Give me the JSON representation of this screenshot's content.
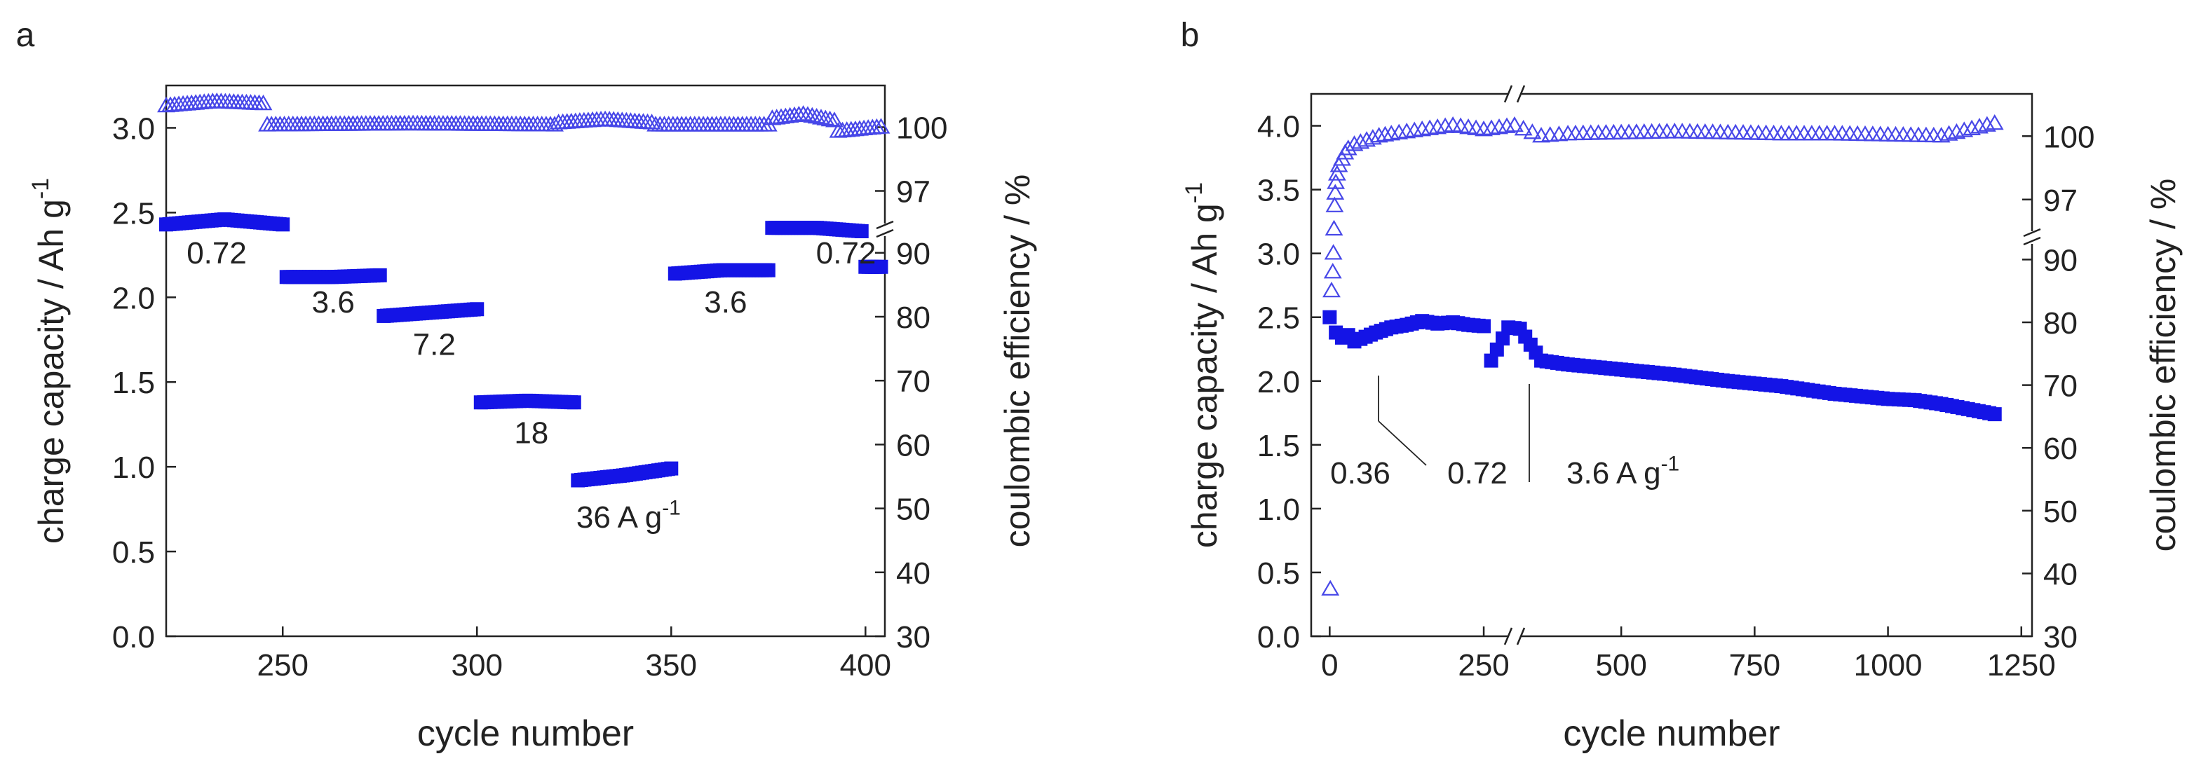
{
  "colors": {
    "series": "#1414e6",
    "marker_edge": "#4747e8",
    "axis": "#222222"
  },
  "chart_data": [
    {
      "type": "scatter",
      "panel_label": "a",
      "xlabel": "cycle number",
      "ylabel": "charge capacity / Ah g",
      "ylabel_sup": "-1",
      "y2label": "coulombic efficiency / %",
      "xlim": [
        220,
        405
      ],
      "ylim": [
        0,
        3.25
      ],
      "y2_upper_range": [
        95.5,
        101.5
      ],
      "y2_lower_range": [
        30,
        92.5
      ],
      "xticks": [
        250,
        300,
        350,
        400
      ],
      "yticks": [
        0.0,
        0.5,
        1.0,
        1.5,
        2.0,
        2.5,
        3.0
      ],
      "y2ticks_upper": [
        97,
        100
      ],
      "y2ticks_lower": [
        30,
        40,
        50,
        60,
        70,
        80,
        90
      ],
      "series": [
        {
          "name": "charge capacity",
          "marker": "filled-square",
          "segments": [
            {
              "x_start": 220,
              "x_end": 250,
              "y_start": 2.43,
              "y_mid": 2.46,
              "y_end": 2.43
            },
            {
              "x_start": 251,
              "x_end": 275,
              "y_start": 2.12,
              "y_mid": 2.12,
              "y_end": 2.13
            },
            {
              "x_start": 276,
              "x_end": 300,
              "y_start": 1.89,
              "y_mid": 1.91,
              "y_end": 1.93
            },
            {
              "x_start": 301,
              "x_end": 325,
              "y_start": 1.38,
              "y_mid": 1.39,
              "y_end": 1.38
            },
            {
              "x_start": 326,
              "x_end": 350,
              "y_start": 0.92,
              "y_mid": 0.95,
              "y_end": 0.99
            },
            {
              "x_start": 351,
              "x_end": 375,
              "y_start": 2.14,
              "y_mid": 2.16,
              "y_end": 2.16
            },
            {
              "x_start": 376,
              "x_end": 399,
              "y_start": 2.41,
              "y_mid": 2.41,
              "y_end": 2.39
            },
            {
              "x_start": 400,
              "x_end": 404,
              "y_start": 2.18,
              "y_mid": 2.18,
              "y_end": 2.18
            }
          ]
        },
        {
          "name": "coulombic efficiency",
          "marker": "open-triangle",
          "segments": [
            {
              "x_start": 220,
              "x_end": 245,
              "y_start": 101.0,
              "y_mid": 101.2,
              "y_end": 101.1
            },
            {
              "x_start": 246,
              "x_end": 320,
              "y_start": 100.1,
              "y_mid": 100.15,
              "y_end": 100.1
            },
            {
              "x_start": 321,
              "x_end": 345,
              "y_start": 100.2,
              "y_mid": 100.35,
              "y_end": 100.2
            },
            {
              "x_start": 346,
              "x_end": 375,
              "y_start": 100.1,
              "y_mid": 100.1,
              "y_end": 100.1
            },
            {
              "x_start": 376,
              "x_end": 392,
              "y_start": 100.4,
              "y_mid": 100.6,
              "y_end": 100.3
            },
            {
              "x_start": 393,
              "x_end": 404,
              "y_start": 99.8,
              "y_mid": 99.9,
              "y_end": 100.0
            }
          ]
        }
      ],
      "annotations": [
        {
          "text": "0.72",
          "x": 233,
          "y": 2.2
        },
        {
          "text": "3.6",
          "x": 263,
          "y": 1.91
        },
        {
          "text": "7.2",
          "x": 289,
          "y": 1.66
        },
        {
          "text": "18",
          "x": 314,
          "y": 1.14
        },
        {
          "text": "36 A g",
          "sup": "-1",
          "x": 339,
          "y": 0.64
        },
        {
          "text": "3.6",
          "x": 364,
          "y": 1.91
        },
        {
          "text": "0.72",
          "x": 395,
          "y": 2.2
        }
      ]
    },
    {
      "type": "scatter",
      "panel_label": "b",
      "xlabel": "cycle number",
      "ylabel": "charge capacity / Ah g",
      "ylabel_sup": "-1",
      "y2label": "coulombic efficiency / %",
      "x_break": true,
      "xlim_left": [
        -30,
        300
      ],
      "xlim_right": [
        300,
        1270
      ],
      "ylim": [
        0,
        4.25
      ],
      "y2_upper_range": [
        95.5,
        101.8
      ],
      "y2_lower_range": [
        30,
        92.5
      ],
      "xticks": [
        0,
        250,
        500,
        750,
        1000,
        1250
      ],
      "yticks": [
        0.0,
        0.5,
        1.0,
        1.5,
        2.0,
        2.5,
        3.0,
        3.5,
        4.0
      ],
      "y2ticks_upper": [
        97,
        100
      ],
      "y2ticks_lower": [
        30,
        40,
        50,
        60,
        70,
        80,
        90
      ],
      "series": [
        {
          "name": "charge capacity",
          "marker": "filled-square",
          "points": [
            [
              0,
              2.5
            ],
            [
              10,
              2.38
            ],
            [
              20,
              2.34
            ],
            [
              30,
              2.36
            ],
            [
              40,
              2.31
            ],
            [
              50,
              2.33
            ],
            [
              75,
              2.38
            ],
            [
              100,
              2.42
            ],
            [
              125,
              2.44
            ],
            [
              150,
              2.47
            ],
            [
              175,
              2.45
            ],
            [
              200,
              2.46
            ],
            [
              225,
              2.44
            ],
            [
              250,
              2.43
            ],
            [
              262,
              2.16
            ],
            [
              290,
              2.42
            ],
            [
              310,
              2.41
            ],
            [
              350,
              2.16
            ],
            [
              400,
              2.13
            ],
            [
              500,
              2.09
            ],
            [
              600,
              2.05
            ],
            [
              700,
              2.0
            ],
            [
              800,
              1.96
            ],
            [
              900,
              1.9
            ],
            [
              1000,
              1.86
            ],
            [
              1050,
              1.85
            ],
            [
              1100,
              1.82
            ],
            [
              1150,
              1.78
            ],
            [
              1200,
              1.74
            ]
          ]
        },
        {
          "name": "coulombic efficiency",
          "marker": "open-triangle",
          "points": [
            [
              1,
              37.5
            ],
            [
              3,
              85.0
            ],
            [
              5,
              88.0
            ],
            [
              6,
              91.0
            ],
            [
              7,
              95.6
            ],
            [
              8,
              96.7
            ],
            [
              9,
              97.3
            ],
            [
              10,
              97.8
            ],
            [
              12,
              98.2
            ],
            [
              15,
              98.6
            ],
            [
              20,
              98.9
            ],
            [
              25,
              99.2
            ],
            [
              30,
              99.4
            ],
            [
              40,
              99.6
            ],
            [
              60,
              99.8
            ],
            [
              80,
              100.0
            ],
            [
              100,
              100.1
            ],
            [
              150,
              100.3
            ],
            [
              200,
              100.5
            ],
            [
              250,
              100.3
            ],
            [
              300,
              100.5
            ],
            [
              350,
              100.0
            ],
            [
              400,
              100.1
            ],
            [
              600,
              100.2
            ],
            [
              800,
              100.1
            ],
            [
              900,
              100.1
            ],
            [
              1100,
              100.0
            ],
            [
              1200,
              100.6
            ]
          ]
        }
      ],
      "annotations": [
        {
          "text": "0.36",
          "x": 25,
          "y": 1.35
        },
        {
          "text": "0.72",
          "x": 270,
          "y": 1.35
        },
        {
          "text": "3.6 A g",
          "sup": "-1",
          "x": 420,
          "y": 1.35
        }
      ]
    }
  ]
}
